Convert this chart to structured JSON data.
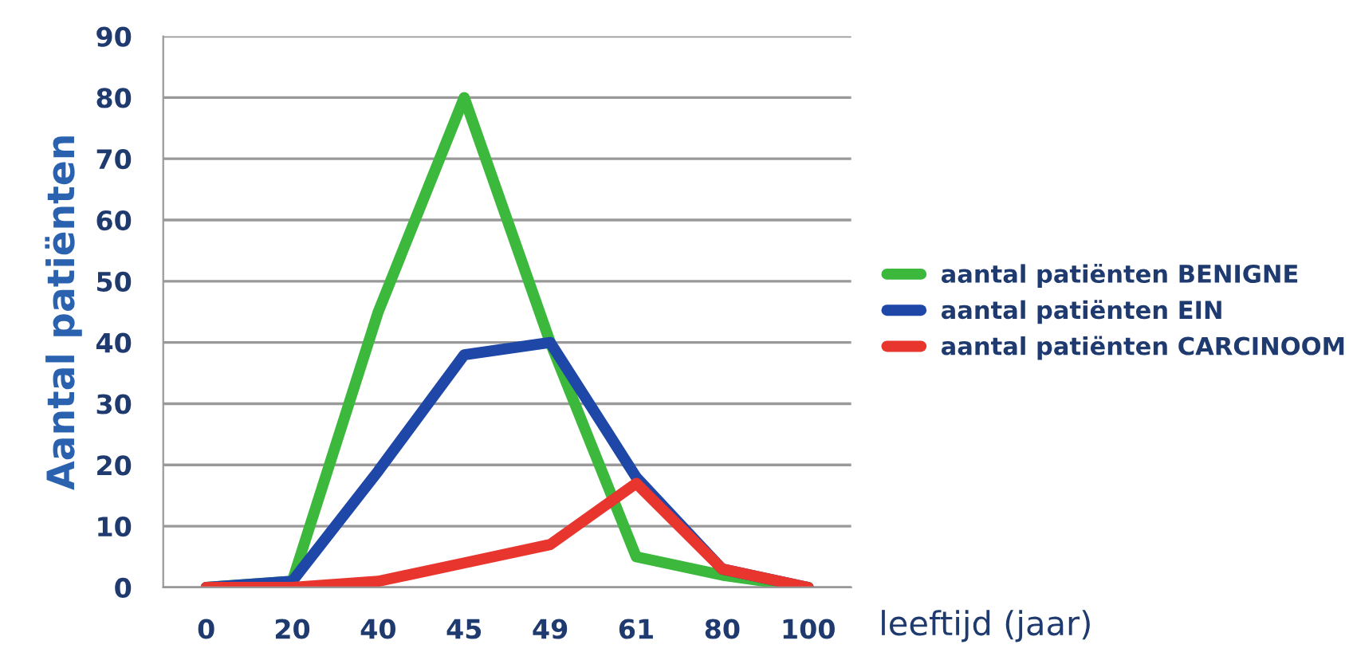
{
  "chart_data": {
    "type": "line",
    "xlabel": "leeftijd (jaar)",
    "ylabel": "Aantal patiënten",
    "categories": [
      "0",
      "20",
      "40",
      "45",
      "49",
      "61",
      "80",
      "100"
    ],
    "series": [
      {
        "name": "aantal patiënten BENIGNE",
        "color": "#3cb83c",
        "values": [
          0,
          1,
          45,
          80,
          40,
          5,
          2,
          0
        ]
      },
      {
        "name": "aantal patiënten EIN",
        "color": "#1f47a8",
        "values": [
          0,
          1,
          19,
          38,
          40,
          18,
          3,
          0
        ]
      },
      {
        "name": "aantal patiënten CARCINOOM",
        "color": "#e8352e",
        "values": [
          0,
          0,
          1,
          4,
          7,
          17,
          3,
          0
        ]
      }
    ],
    "ylim": [
      0,
      90
    ],
    "yticks": [
      0,
      10,
      20,
      30,
      40,
      50,
      60,
      70,
      80,
      90
    ],
    "grid": "y",
    "legend": "right",
    "marker": "none",
    "line_style": "solid"
  }
}
